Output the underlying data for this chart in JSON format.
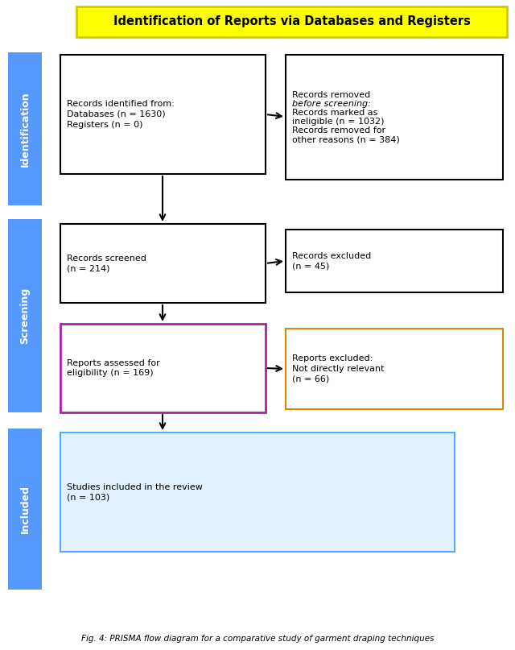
{
  "title": "Identification of Reports via Databases and Registers",
  "title_bg": "#FFFF00",
  "title_color": "#000000",
  "title_fontsize": 10.5,
  "sidebar_labels": [
    "Identification",
    "Screening",
    "Included"
  ],
  "sidebar_color": "#5599FF",
  "box1_text": "Records identified from:\nDatabases (n = 1630)\nRegisters (n = 0)",
  "box2_text": "Records screened\n(n = 214)",
  "box3_text": "Reports assessed for\neligibility (n = 169)",
  "box4_text": "Studies included in the review\n(n = 103)",
  "box_right1_line1": "Records removed",
  "box_right1_line2": "before screening:",
  "box_right1_line3": "Records marked as",
  "box_right1_line4": "ineligible (n = 1032)",
  "box_right1_line5": "Records removed for",
  "box_right1_line6": "other reasons (n = 384)",
  "box_right2_text": "Records excluded\n(n = 45)",
  "box_right3_text": "Reports excluded:\nNot directly relevant\n(n = 66)",
  "box1_border": "#000000",
  "box2_border": "#000000",
  "box3_border": "#AA22AA",
  "box4_border": "#55AAFF",
  "box_right1_border": "#000000",
  "box_right2_border": "#000000",
  "box_right3_border": "#DD8800",
  "box4_bg": "#E0F0FF",
  "box_bg": "#FFFFFF",
  "fontsize": 8.0,
  "caption": "Fig. 4: PRISMA flow diagram for a comparative study of garment draping techniques"
}
